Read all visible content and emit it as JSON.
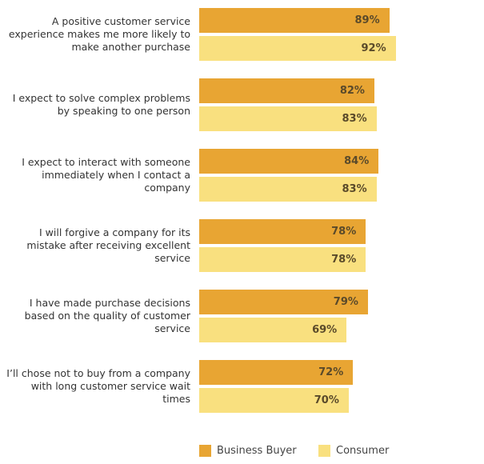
{
  "chart_data": {
    "type": "bar",
    "orientation": "horizontal",
    "categories": [
      "A positive customer service experience makes me more likely to make another purchase",
      "I expect to solve complex problems by speaking to one person",
      "I expect to interact with someone immediately when I contact a company",
      "I will forgive a company for its mistake after receiving excellent service",
      "I have made purchase decisions based on the quality of customer service",
      "I’ll chose not to buy from a company with long customer service wait times"
    ],
    "series": [
      {
        "name": "Business Buyer",
        "color": "#e8a533",
        "values": [
          89,
          82,
          84,
          78,
          79,
          72
        ],
        "value_labels": [
          "89%",
          "82%",
          "84%",
          "78%",
          "79%",
          "72%"
        ]
      },
      {
        "name": "Consumer",
        "color": "#f9e07f",
        "values": [
          92,
          83,
          83,
          78,
          69,
          70
        ],
        "value_labels": [
          "92%",
          "83%",
          "83%",
          "78%",
          "69%",
          "70%"
        ]
      }
    ],
    "xlim": [
      0,
      100
    ]
  }
}
